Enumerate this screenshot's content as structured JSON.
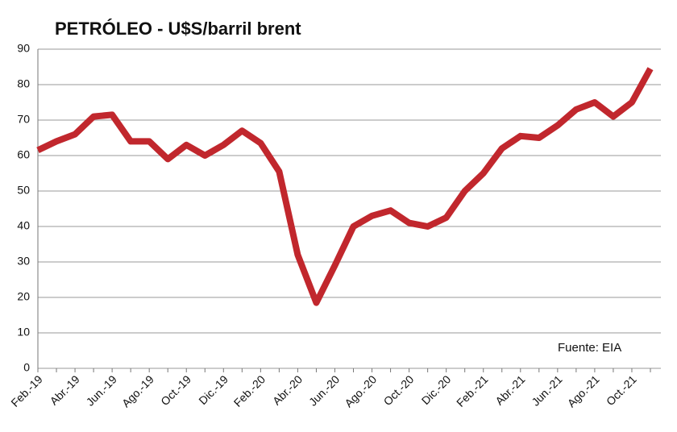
{
  "chart_data": {
    "type": "line",
    "title": "PETRÓLEO - U$S/barril brent",
    "annotation": "Fuente: EIA",
    "categories": [
      "Feb.-19",
      null,
      "Abr.-19",
      null,
      "Jun.-19",
      null,
      "Ago.-19",
      null,
      "Oct.-19",
      null,
      "Dic.-19",
      null,
      "Feb.-20",
      null,
      "Abr.-20",
      null,
      "Jun.-20",
      null,
      "Ago.-20",
      null,
      "Oct.-20",
      null,
      "Dic.-20",
      null,
      "Feb.-21",
      null,
      "Abr.-21",
      null,
      "Jun.-21",
      null,
      "Ago.-21",
      null,
      "Oct.-21",
      null
    ],
    "series": [
      {
        "color": "#c1272d",
        "values": [
          61.5,
          64,
          66,
          71,
          71.5,
          64,
          64,
          59,
          63,
          60,
          63,
          67,
          63.5,
          55.5,
          32,
          18.5,
          29,
          40,
          43,
          44.5,
          41,
          40,
          42.5,
          50,
          55,
          62,
          65.5,
          65,
          68.5,
          73,
          75,
          71,
          75,
          84.5
        ]
      }
    ],
    "ylim": [
      0,
      90
    ],
    "yticks": [
      0,
      10,
      20,
      30,
      40,
      50,
      60,
      70,
      80,
      90
    ],
    "grid": true
  }
}
